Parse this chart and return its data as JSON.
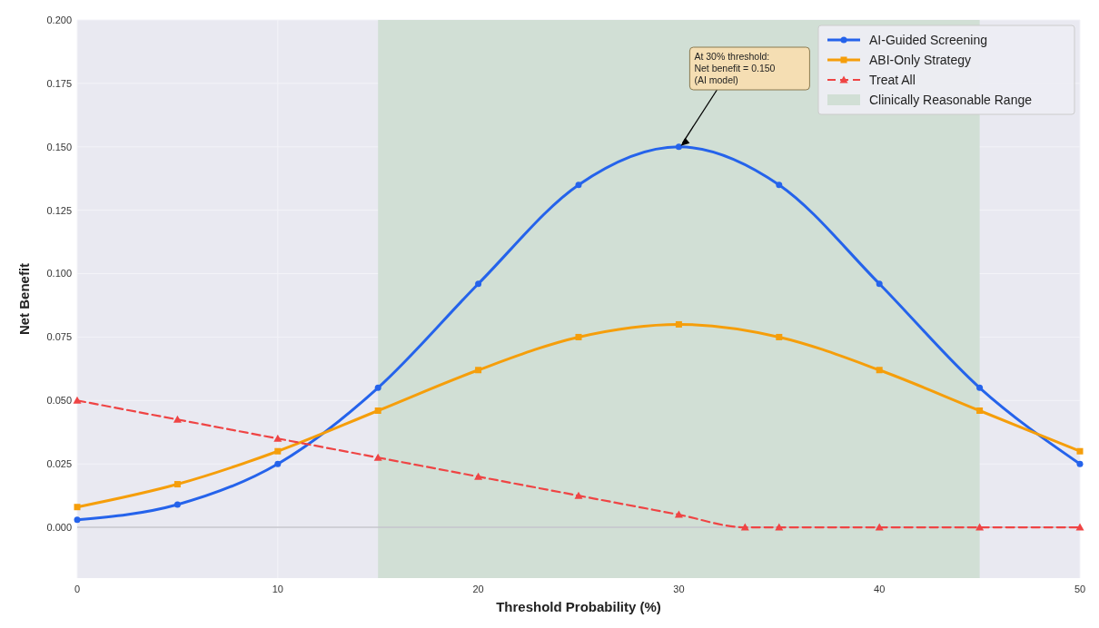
{
  "chart_data": {
    "type": "line",
    "xlabel": "Threshold Probability (%)",
    "ylabel": "Net Benefit",
    "xlim": [
      0,
      50
    ],
    "xticks": [
      0,
      10,
      20,
      30,
      40,
      50
    ],
    "ylim": [
      -0.02,
      0.2
    ],
    "yticks": [
      {
        "value": 0,
        "label": "0.000"
      },
      {
        "value": 0.025,
        "label": "0.025"
      },
      {
        "value": 0.05,
        "label": "0.050"
      },
      {
        "value": 0.075,
        "label": "0.075"
      },
      {
        "value": 0.1,
        "label": "0.100"
      },
      {
        "value": 0.125,
        "label": "0.125"
      },
      {
        "value": 0.15,
        "label": "0.150"
      },
      {
        "value": 0.175,
        "label": "0.175"
      },
      {
        "value": 0.2,
        "label": "0.200"
      }
    ],
    "grid": true,
    "legend": "top right",
    "series": [
      {
        "name": "AI-Guided Screening",
        "color": "#2563eb",
        "marker": "circle",
        "line_style": "solid",
        "x": [
          0,
          5,
          10,
          15,
          20,
          25,
          30,
          35,
          40,
          45,
          50
        ],
        "values": [
          0.003,
          0.009,
          0.025,
          0.055,
          0.096,
          0.135,
          0.15,
          0.135,
          0.096,
          0.055,
          0.025
        ]
      },
      {
        "name": "ABI-Only Strategy",
        "color": "#f59e0b",
        "marker": "square",
        "line_style": "solid",
        "x": [
          0,
          5,
          10,
          15,
          20,
          25,
          30,
          35,
          40,
          45,
          50
        ],
        "values": [
          0.008,
          0.017,
          0.03,
          0.046,
          0.062,
          0.075,
          0.08,
          0.075,
          0.062,
          0.046,
          0.03
        ]
      },
      {
        "name": "Treat All",
        "color": "#ef4444",
        "marker": "triangle",
        "line_style": "dashed",
        "x": [
          0,
          5,
          10,
          15,
          20,
          25,
          30,
          33.3,
          35,
          40,
          45,
          50
        ],
        "values": [
          0.05,
          0.0425,
          0.035,
          0.0275,
          0.02,
          0.0125,
          0.005,
          0,
          0,
          0,
          0,
          0
        ]
      }
    ],
    "bands": [
      {
        "axis": "x",
        "from": 15,
        "to": 45,
        "label": "Clinically Reasonable Range",
        "color": "#d1dfd5"
      }
    ],
    "ref_lines": [
      {
        "axis": "y",
        "value": 0,
        "color": "#c4c4cc"
      }
    ],
    "annotations": [
      {
        "text": "At 30% threshold:\nNet benefit = 0.150\n(AI model)",
        "x": 30,
        "y": 0.15
      }
    ]
  }
}
